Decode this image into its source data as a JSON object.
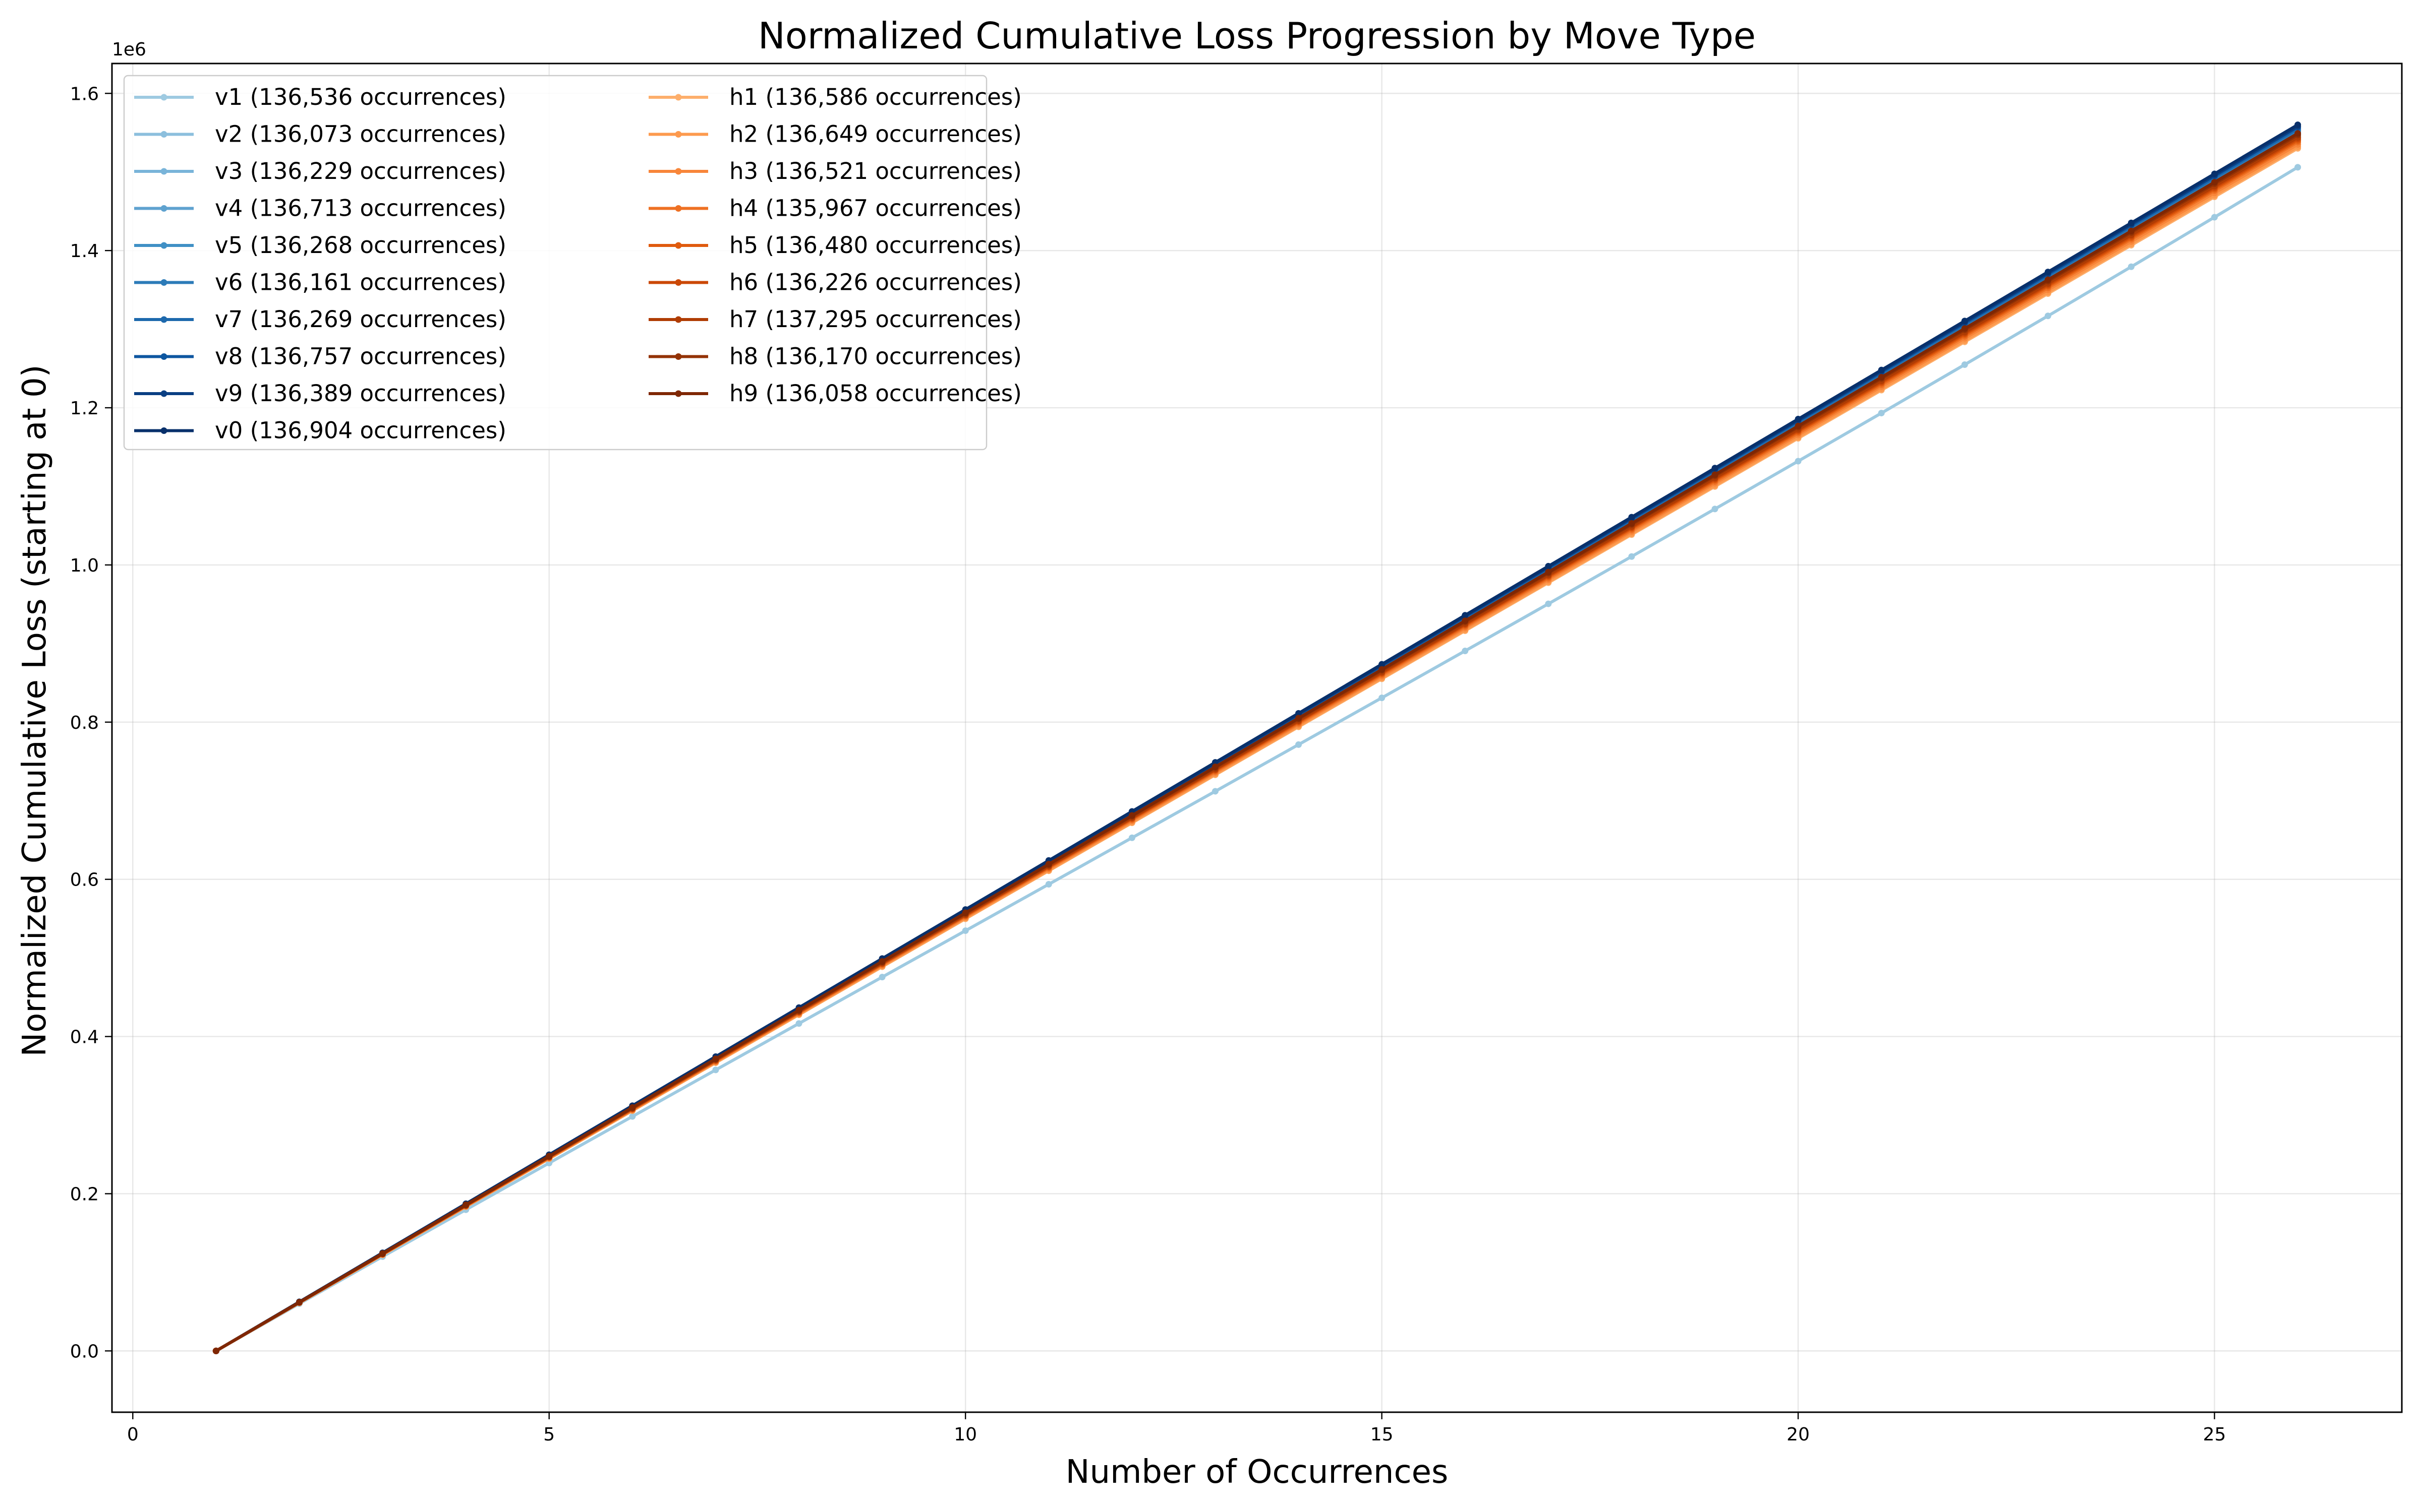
{
  "chart_data": {
    "type": "line",
    "title": "Normalized Cumulative Loss Progression by Move Type",
    "xlabel": "Number of Occurrences",
    "ylabel": "Normalized Cumulative Loss (starting at 0)",
    "y_offset_label": "1e6",
    "xlim": [
      -0.25,
      27.25
    ],
    "ylim": [
      -78000,
      1638000
    ],
    "x_ticks": [
      0,
      5,
      10,
      15,
      20,
      25
    ],
    "x_tick_labels": [
      "0",
      "5",
      "10",
      "15",
      "20",
      "25"
    ],
    "y_ticks": [
      0,
      200000,
      400000,
      600000,
      800000,
      1000000,
      1200000,
      1400000,
      1600000
    ],
    "y_tick_labels": [
      "0.0",
      "0.2",
      "0.4",
      "0.6",
      "0.8",
      "1.0",
      "1.2",
      "1.4",
      "1.6"
    ],
    "grid": true,
    "legend_position": "upper-left",
    "legend_columns": 2,
    "x": [
      1,
      2,
      3,
      4,
      5,
      6,
      7,
      8,
      9,
      10,
      11,
      12,
      13,
      14,
      15,
      16,
      17,
      18,
      19,
      20,
      21,
      22,
      23,
      24,
      25,
      26
    ],
    "series": [
      {
        "name": "v1 (136,536 occurrences)",
        "color": "#9ecae1",
        "final": 1506000,
        "dev": -0.03
      },
      {
        "name": "v2 (136,073 occurrences)",
        "color": "#8cbfdd",
        "final": 1541000,
        "dev": -0.008
      },
      {
        "name": "v3 (136,229 occurrences)",
        "color": "#79b4d9",
        "final": 1545000,
        "dev": -0.004
      },
      {
        "name": "v4 (136,713 occurrences)",
        "color": "#5fa2cf",
        "final": 1548000,
        "dev": -0.002
      },
      {
        "name": "v5 (136,268 occurrences)",
        "color": "#4090c5",
        "final": 1551000,
        "dev": 0.0
      },
      {
        "name": "v6 (136,161 occurrences)",
        "color": "#2c7bb8",
        "final": 1553000,
        "dev": 0.0
      },
      {
        "name": "v7 (136,269 occurrences)",
        "color": "#1d69ad",
        "final": 1555000,
        "dev": 0.0
      },
      {
        "name": "v8 (136,757 occurrences)",
        "color": "#0d56a0",
        "final": 1557000,
        "dev": 0.0
      },
      {
        "name": "v9 (136,389 occurrences)",
        "color": "#0a3f83",
        "final": 1558000,
        "dev": 0.0
      },
      {
        "name": "v0 (136,904 occurrences)",
        "color": "#08306b",
        "final": 1560000,
        "dev": 0.0
      },
      {
        "name": "h1 (136,586 occurrences)",
        "color": "#fdae6b",
        "final": 1530000,
        "dev": -0.004
      },
      {
        "name": "h2 (136,649 occurrences)",
        "color": "#fd9a4e",
        "final": 1532000,
        "dev": -0.004
      },
      {
        "name": "h3 (136,521 occurrences)",
        "color": "#f8863a",
        "final": 1535000,
        "dev": -0.003
      },
      {
        "name": "h4 (135,967 occurrences)",
        "color": "#ee7023",
        "final": 1538000,
        "dev": -0.003
      },
      {
        "name": "h5 (136,480 occurrences)",
        "color": "#e05b0e",
        "final": 1540000,
        "dev": -0.002
      },
      {
        "name": "h6 (136,226 occurrences)",
        "color": "#cb4806",
        "final": 1542000,
        "dev": -0.002
      },
      {
        "name": "h7 (137,295 occurrences)",
        "color": "#b03c03",
        "final": 1544000,
        "dev": -0.002
      },
      {
        "name": "h8 (136,170 occurrences)",
        "color": "#933204",
        "final": 1547000,
        "dev": -0.001
      },
      {
        "name": "h9 (136,058 occurrences)",
        "color": "#7f2704",
        "final": 1549000,
        "dev": -0.001
      }
    ]
  }
}
